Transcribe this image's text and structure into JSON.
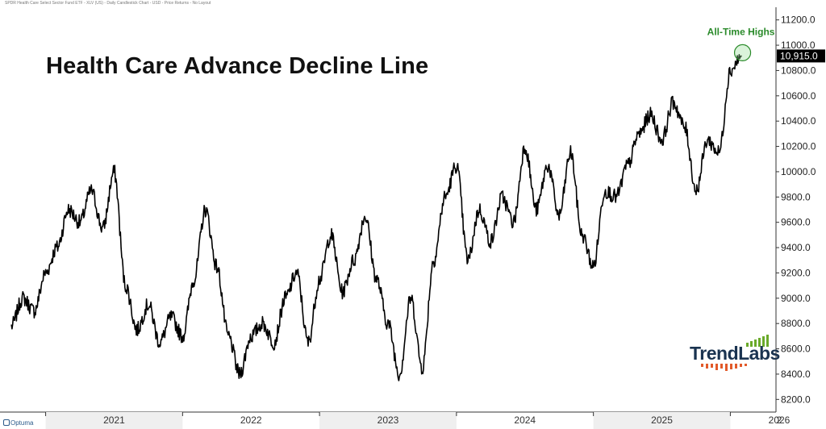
{
  "header": "SPDR Health Care Select Sector Fund ETF - XLV (US) - Daily Candlestick Chart - USD - Price Returns - No Layout",
  "chart_data": {
    "type": "line",
    "title": "Health Care Advance Decline Line",
    "annotation": "All-Time Highs",
    "last_value_label": "10,915.0",
    "last_value": 10915,
    "ylim": [
      8100,
      11300
    ],
    "yticks": [
      8200,
      8400,
      8600,
      8800,
      9000,
      9200,
      9400,
      9600,
      9800,
      10000,
      10200,
      10400,
      10600,
      10800,
      11000,
      11200
    ],
    "ytick_labels": [
      "8200.0",
      "8400.0",
      "8600.0",
      "8800.0",
      "9000.0",
      "9200.0",
      "9400.0",
      "9600.0",
      "9800.0",
      "10000.0",
      "10200.0",
      "10400.0",
      "10600.0",
      "10800.0",
      "11000.0",
      "11200.0"
    ],
    "x_labels": [
      "2021",
      "2022",
      "2023",
      "2024",
      "2025",
      "2026",
      "2"
    ],
    "grid": false,
    "series": [
      {
        "x": [
          "2020-10",
          "2020-11",
          "2020-12",
          "2021-01",
          "2021-02",
          "2021-03",
          "2021-04",
          "2021-05",
          "2021-06",
          "2021-07",
          "2021-08",
          "2021-09",
          "2021-10",
          "2021-11",
          "2021-12",
          "2022-01",
          "2022-02",
          "2022-03",
          "2022-04",
          "2022-05",
          "2022-06",
          "2022-07",
          "2022-08",
          "2022-09",
          "2022-10",
          "2022-11",
          "2022-12",
          "2023-01",
          "2023-02",
          "2023-03",
          "2023-04",
          "2023-05",
          "2023-06",
          "2023-07",
          "2023-08",
          "2023-09",
          "2023-10",
          "2023-11",
          "2023-12",
          "2024-01",
          "2024-02",
          "2024-03",
          "2024-04",
          "2024-05",
          "2024-06",
          "2024-07",
          "2024-08",
          "2024-09",
          "2024-10",
          "2024-11",
          "2024-12",
          "2025-01",
          "2025-02",
          "2025-03",
          "2025-04",
          "2025-05",
          "2025-06",
          "2025-07",
          "2025-08",
          "2025-09",
          "2025-10",
          "2025-11",
          "2025-12",
          "2026-01",
          "2026-02"
        ],
        "values": [
          8780,
          9000,
          8900,
          9200,
          9400,
          9700,
          9600,
          9850,
          9550,
          10000,
          9100,
          8750,
          8950,
          8650,
          8850,
          8700,
          9150,
          9700,
          9250,
          8700,
          8400,
          8700,
          8800,
          8650,
          9000,
          9200,
          8650,
          9150,
          9500,
          9050,
          9300,
          9650,
          9150,
          8800,
          8400,
          9000,
          8450,
          9300,
          9800,
          10050,
          9300,
          9700,
          9450,
          9800,
          9600,
          10200,
          9700,
          10050,
          9650,
          10150,
          9500,
          9250,
          9850,
          9800,
          10050,
          10300,
          10450,
          10250,
          10550,
          10350,
          9850,
          10250,
          10150,
          10800,
          10915
        ]
      }
    ]
  },
  "branding": {
    "logo_text": "TrendLabs",
    "footer": "Optuma",
    "accent_color": "#6aaa2a",
    "annotation_color": "#2a8a2a"
  }
}
